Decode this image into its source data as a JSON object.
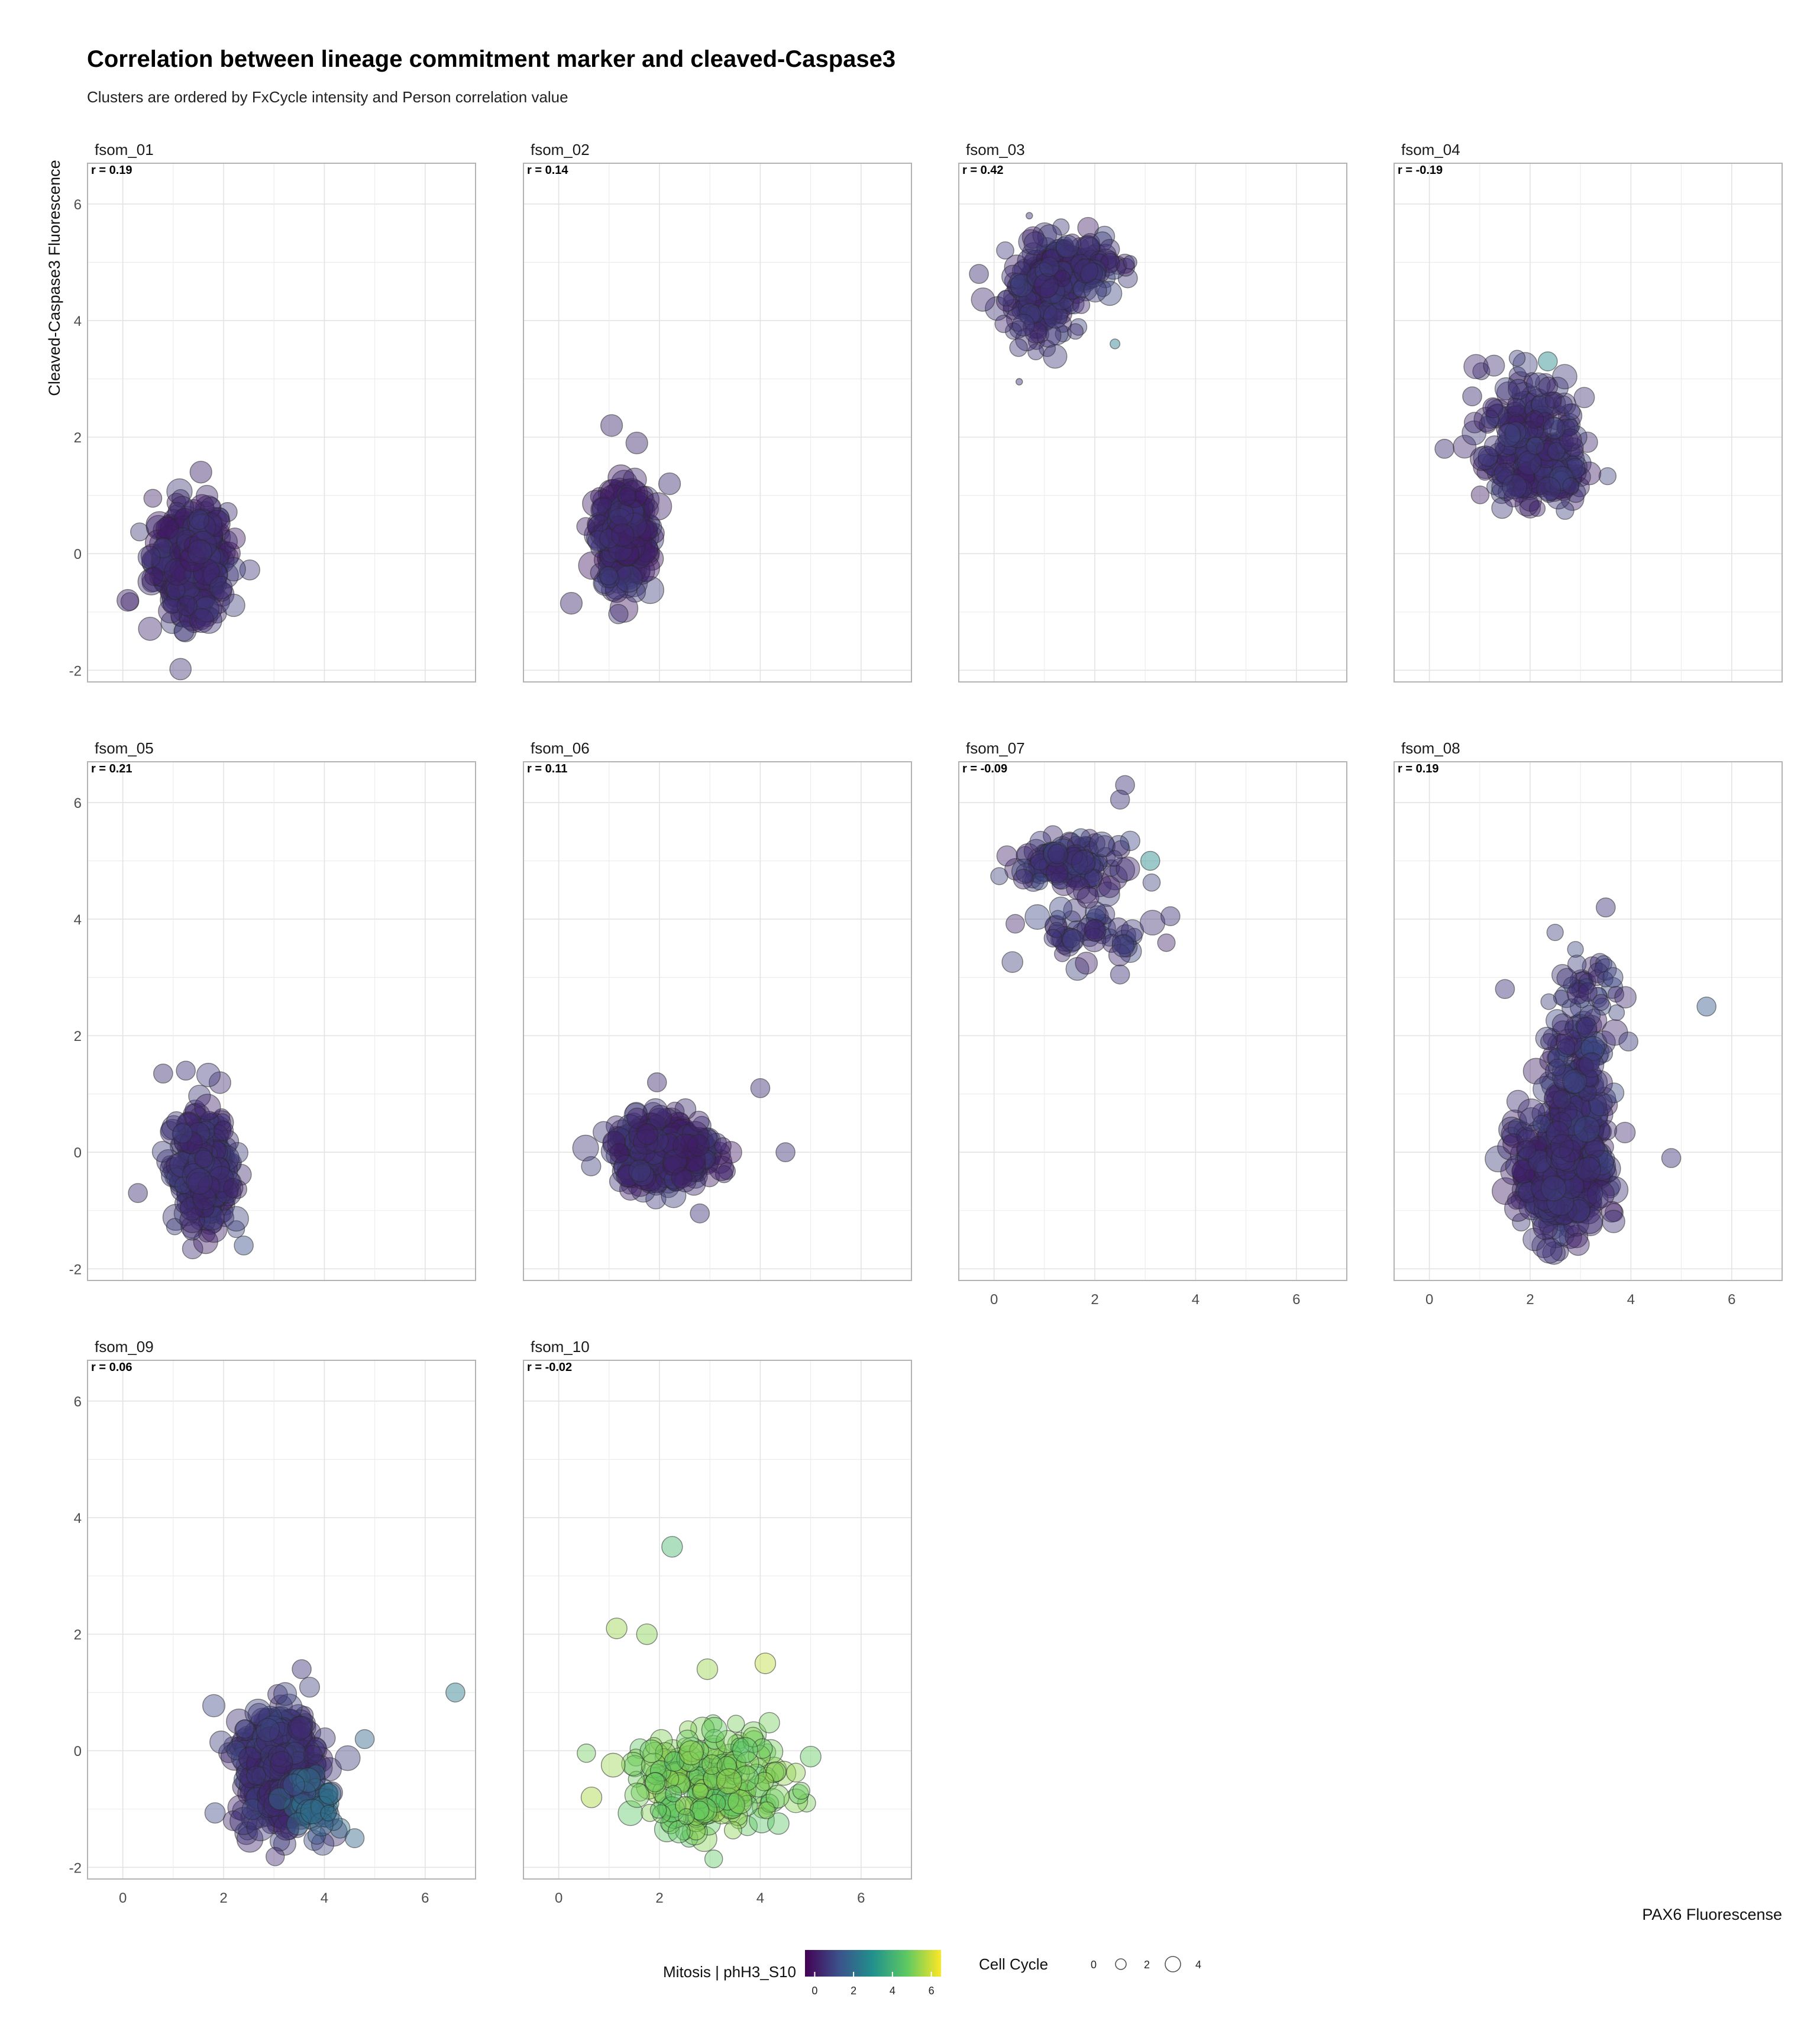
{
  "chart_data": {
    "type": "scatter",
    "title": "Correlation between lineage commitment marker and cleaved-Caspase3",
    "subtitle": "Clusters are ordered by FxCycle intensity and Person correlation value",
    "xlabel": "PAX6 Fluorescense",
    "ylabel": "Cleaved-Caspase3 Fluorescence",
    "xlim": [
      -0.7,
      7.0
    ],
    "ylim": [
      -2.2,
      6.7
    ],
    "x_ticks": [
      0,
      2,
      4,
      6
    ],
    "y_ticks": [
      -2,
      0,
      2,
      4,
      6
    ],
    "grid": true,
    "color_scale": {
      "title": "Mitosis | phH3_S10",
      "ticks": [
        0,
        2,
        4,
        6
      ],
      "range": [
        -0.5,
        6.5
      ],
      "colors": [
        "#440154",
        "#3b528b",
        "#21918c",
        "#5ec962",
        "#fde725"
      ]
    },
    "size_scale": {
      "title": "Cell Cycle",
      "ticks": [
        0,
        2,
        4
      ]
    },
    "panels": [
      {
        "name": "fsom_01",
        "r_label": "r = 0.19",
        "clusters": [
          {
            "cx": 1.35,
            "cy": -0.1,
            "sx": 0.42,
            "sy": 0.55,
            "n": 380,
            "size": 4.2,
            "color": 0.4
          }
        ],
        "outliers": [
          {
            "x": 1.55,
            "y": 1.4,
            "size": 4,
            "color": 0.3
          },
          {
            "x": 0.1,
            "y": -0.8,
            "size": 4,
            "color": 0.3
          }
        ]
      },
      {
        "name": "fsom_02",
        "r_label": "r = 0.14",
        "clusters": [
          {
            "cx": 1.3,
            "cy": 0.3,
            "sx": 0.3,
            "sy": 0.5,
            "n": 300,
            "size": 4.3,
            "color": 0.4
          }
        ],
        "outliers": [
          {
            "x": 1.05,
            "y": 2.2,
            "size": 4,
            "color": 0.4
          },
          {
            "x": 1.55,
            "y": 1.9,
            "size": 4,
            "color": 0.4
          },
          {
            "x": 0.25,
            "y": -0.85,
            "size": 4,
            "color": 0.4
          },
          {
            "x": 2.2,
            "y": 1.2,
            "size": 4,
            "color": 0.5
          }
        ]
      },
      {
        "name": "fsom_03",
        "r_label": "r = 0.42",
        "clusters": [
          {
            "cx": 0.9,
            "cy": 4.3,
            "sx": 0.35,
            "sy": 0.45,
            "n": 110,
            "size": 3.8,
            "color": 0.5
          },
          {
            "cx": 1.5,
            "cy": 4.9,
            "sx": 0.5,
            "sy": 0.28,
            "n": 180,
            "size": 3.8,
            "color": 0.5
          }
        ],
        "outliers": [
          {
            "x": 2.4,
            "y": 3.6,
            "size": 1.8,
            "color": 2.5
          },
          {
            "x": 0.5,
            "y": 2.95,
            "size": 1.2,
            "color": 0.5
          },
          {
            "x": 2.7,
            "y": 5.0,
            "size": 2.5,
            "color": 0.6
          },
          {
            "x": 0.7,
            "y": 5.8,
            "size": 1.2,
            "color": 0.6
          },
          {
            "x": -0.3,
            "y": 4.8,
            "size": 3.5,
            "color": 0.5
          }
        ]
      },
      {
        "name": "fsom_04",
        "r_label": "r = -0.19",
        "clusters": [
          {
            "cx": 2.2,
            "cy": 1.4,
            "sx": 0.55,
            "sy": 0.3,
            "n": 200,
            "size": 3.8,
            "color": 0.5
          },
          {
            "cx": 2.0,
            "cy": 2.3,
            "sx": 0.6,
            "sy": 0.5,
            "n": 110,
            "size": 3.8,
            "color": 0.5
          }
        ],
        "outliers": [
          {
            "x": 2.35,
            "y": 3.3,
            "size": 3.5,
            "color": 2.8
          },
          {
            "x": 0.85,
            "y": 2.7,
            "size": 3.5,
            "color": 0.5
          },
          {
            "x": 0.3,
            "y": 1.8,
            "size": 3.5,
            "color": 0.5
          }
        ]
      },
      {
        "name": "fsom_05",
        "r_label": "r = 0.21",
        "clusters": [
          {
            "cx": 1.6,
            "cy": -0.35,
            "sx": 0.32,
            "sy": 0.55,
            "n": 320,
            "size": 4.0,
            "color": 0.5
          }
        ],
        "outliers": [
          {
            "x": 1.25,
            "y": 1.4,
            "size": 3.5,
            "color": 0.6
          },
          {
            "x": 0.8,
            "y": 1.35,
            "size": 3.5,
            "color": 0.5
          },
          {
            "x": 2.4,
            "y": -1.6,
            "size": 3.5,
            "color": 1.2
          },
          {
            "x": 0.3,
            "y": -0.7,
            "size": 3.5,
            "color": 0.5
          }
        ]
      },
      {
        "name": "fsom_06",
        "r_label": "r = 0.11",
        "clusters": [
          {
            "cx": 2.1,
            "cy": 0.0,
            "sx": 0.6,
            "sy": 0.32,
            "n": 380,
            "size": 4.0,
            "color": 0.4
          }
        ],
        "outliers": [
          {
            "x": 1.95,
            "y": 1.2,
            "size": 3.5,
            "color": 0.4
          },
          {
            "x": 2.8,
            "y": -1.05,
            "size": 3.5,
            "color": 0.6
          },
          {
            "x": 4.5,
            "y": 0.0,
            "size": 3.5,
            "color": 0.6
          },
          {
            "x": 4.0,
            "y": 1.1,
            "size": 3.5,
            "color": 0.5
          }
        ]
      },
      {
        "name": "fsom_07",
        "r_label": "r = -0.09",
        "clusters": [
          {
            "cx": 1.5,
            "cy": 4.95,
            "sx": 0.6,
            "sy": 0.22,
            "n": 120,
            "size": 3.8,
            "color": 0.6
          },
          {
            "cx": 1.8,
            "cy": 3.8,
            "sx": 0.7,
            "sy": 0.32,
            "n": 55,
            "size": 3.8,
            "color": 0.6
          }
        ],
        "outliers": [
          {
            "x": 3.1,
            "y": 5.0,
            "size": 3.5,
            "color": 2.8
          },
          {
            "x": 2.6,
            "y": 6.3,
            "size": 3.5,
            "color": 0.6
          },
          {
            "x": 2.5,
            "y": 6.05,
            "size": 3.5,
            "color": 0.6
          },
          {
            "x": 3.5,
            "y": 4.05,
            "size": 3.5,
            "color": 0.6
          },
          {
            "x": 2.5,
            "y": 3.05,
            "size": 3.5,
            "color": 0.6
          }
        ]
      },
      {
        "name": "fsom_08",
        "r_label": "r = 0.19",
        "clusters": [
          {
            "cx": 2.65,
            "cy": -0.3,
            "sx": 0.5,
            "sy": 0.6,
            "n": 440,
            "size": 4.2,
            "color": 0.5
          },
          {
            "cx": 2.9,
            "cy": 1.2,
            "sx": 0.38,
            "sy": 0.75,
            "n": 150,
            "size": 4.0,
            "color": 0.6
          },
          {
            "cx": 3.0,
            "cy": 2.8,
            "sx": 0.4,
            "sy": 0.4,
            "n": 38,
            "size": 3.6,
            "color": 0.6
          }
        ],
        "outliers": [
          {
            "x": 5.5,
            "y": 2.5,
            "size": 3.5,
            "color": 1.5
          },
          {
            "x": 3.5,
            "y": 4.2,
            "size": 3.5,
            "color": 0.6
          },
          {
            "x": 1.5,
            "y": 2.8,
            "size": 3.5,
            "color": 0.6
          },
          {
            "x": 3.95,
            "y": 1.9,
            "size": 3.5,
            "color": 0.8
          },
          {
            "x": 4.8,
            "y": -0.1,
            "size": 3.5,
            "color": 0.6
          }
        ]
      },
      {
        "name": "fsom_09",
        "r_label": "r = 0.06",
        "clusters": [
          {
            "cx": 3.1,
            "cy": -0.3,
            "sx": 0.45,
            "sy": 0.6,
            "n": 420,
            "size": 4.2,
            "color": 0.6
          },
          {
            "cx": 3.8,
            "cy": -0.9,
            "sx": 0.35,
            "sy": 0.3,
            "n": 40,
            "size": 3.8,
            "color": 1.8
          }
        ],
        "outliers": [
          {
            "x": 6.6,
            "y": 1.0,
            "size": 3.5,
            "color": 2.4
          },
          {
            "x": 4.8,
            "y": 0.2,
            "size": 3.5,
            "color": 1.8
          },
          {
            "x": 3.55,
            "y": 1.4,
            "size": 3.5,
            "color": 0.6
          },
          {
            "x": 4.6,
            "y": -1.5,
            "size": 3.5,
            "color": 1.8
          }
        ]
      },
      {
        "name": "fsom_10",
        "r_label": "r = -0.02",
        "clusters": [
          {
            "cx": 3.0,
            "cy": -0.55,
            "sx": 0.95,
            "sy": 0.5,
            "n": 220,
            "size": 3.9,
            "color": 5.0
          }
        ],
        "outliers": [
          {
            "x": 2.25,
            "y": 3.5,
            "size": 3.8,
            "color": 4.2
          },
          {
            "x": 1.15,
            "y": 2.1,
            "size": 3.8,
            "color": 5.4
          },
          {
            "x": 1.75,
            "y": 2.0,
            "size": 3.8,
            "color": 5.2
          },
          {
            "x": 2.95,
            "y": 1.4,
            "size": 3.8,
            "color": 5.4
          },
          {
            "x": 4.1,
            "y": 1.5,
            "size": 3.8,
            "color": 5.8
          },
          {
            "x": 5.0,
            "y": -0.1,
            "size": 3.8,
            "color": 4.8
          },
          {
            "x": 0.65,
            "y": -0.8,
            "size": 3.8,
            "color": 5.6
          }
        ]
      }
    ]
  }
}
